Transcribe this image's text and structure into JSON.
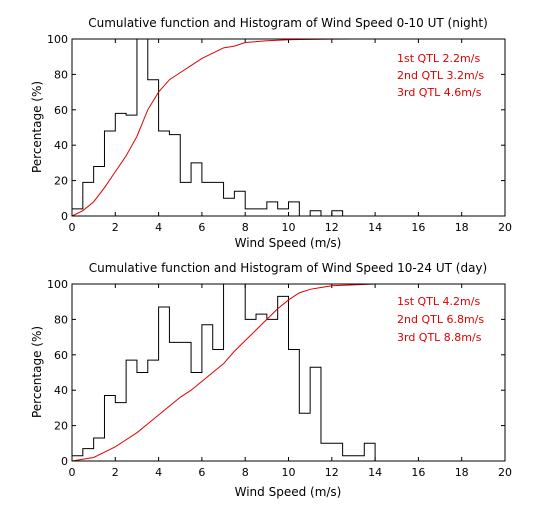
{
  "chart_data": [
    {
      "type": "line",
      "title": "Cumulative function and Histogram of Wind Speed 0-10 UT (night)",
      "xlabel": "Wind Speed (m/s)",
      "ylabel": "Percentage (%)",
      "xlim": [
        0,
        20
      ],
      "ylim": [
        0,
        100
      ],
      "xticks": [
        "0",
        "2",
        "4",
        "6",
        "8",
        "10",
        "12",
        "14",
        "16",
        "18",
        "20"
      ],
      "yticks": [
        "0",
        "20",
        "40",
        "60",
        "80",
        "100"
      ],
      "grid": false,
      "series": [
        {
          "kind": "histogram-step",
          "bin_width": 0.5,
          "bin_starts": [
            0,
            0.5,
            1,
            1.5,
            2,
            2.5,
            3,
            3.5,
            4,
            4.5,
            5,
            5.5,
            6,
            6.5,
            7,
            7.5,
            8,
            8.5,
            9,
            9.5,
            10,
            10.5,
            11,
            11.5,
            12,
            12.5,
            13
          ],
          "values": [
            4,
            19,
            28,
            48,
            58,
            57,
            100,
            77,
            48,
            46,
            19,
            30,
            19,
            19,
            10,
            14,
            4,
            4,
            8,
            4,
            8,
            0,
            3,
            0,
            3,
            0,
            0
          ]
        },
        {
          "kind": "cumulative",
          "x": [
            0,
            0.5,
            1,
            1.5,
            2,
            2.5,
            3,
            3.5,
            4,
            4.5,
            5,
            5.5,
            6,
            6.5,
            7,
            7.5,
            8,
            8.5,
            9,
            9.5,
            10,
            10.5,
            11,
            12,
            13,
            14,
            16,
            18,
            20
          ],
          "values": [
            0,
            3,
            8,
            16,
            25,
            34,
            45,
            60,
            70,
            77,
            81,
            85,
            89,
            92,
            95,
            96,
            98,
            98.5,
            99,
            99.3,
            99.6,
            99.7,
            99.8,
            99.9,
            100,
            100,
            100,
            100,
            100
          ]
        }
      ],
      "annotations": [
        "1st QTL 2.2m/s",
        "2nd QTL 3.2m/s",
        "3rd QTL 4.6m/s"
      ]
    },
    {
      "type": "line",
      "title": "Cumulative function and Histogram of Wind Speed 10-24 UT (day)",
      "xlabel": "Wind Speed (m/s)",
      "ylabel": "Percentage (%)",
      "xlim": [
        0,
        20
      ],
      "ylim": [
        0,
        100
      ],
      "xticks": [
        "0",
        "2",
        "4",
        "6",
        "8",
        "10",
        "12",
        "14",
        "16",
        "18",
        "20"
      ],
      "yticks": [
        "0",
        "20",
        "40",
        "60",
        "80",
        "100"
      ],
      "grid": false,
      "series": [
        {
          "kind": "histogram-step",
          "bin_width": 0.5,
          "bin_starts": [
            0,
            0.5,
            1,
            1.5,
            2,
            2.5,
            3,
            3.5,
            4,
            4.5,
            5,
            5.5,
            6,
            6.5,
            7,
            7.5,
            8,
            8.5,
            9,
            9.5,
            10,
            10.5,
            11,
            11.5,
            12,
            12.5,
            13,
            13.5
          ],
          "values": [
            3,
            7,
            13,
            37,
            33,
            57,
            50,
            57,
            87,
            67,
            67,
            50,
            77,
            63,
            100,
            100,
            80,
            83,
            80,
            93,
            63,
            27,
            53,
            10,
            10,
            3,
            3,
            10
          ]
        },
        {
          "kind": "cumulative",
          "x": [
            0,
            0.5,
            1,
            1.5,
            2,
            2.5,
            3,
            3.5,
            4,
            4.5,
            5,
            5.5,
            6,
            6.5,
            7,
            7.5,
            8,
            8.5,
            9,
            9.5,
            10,
            10.5,
            11,
            11.5,
            12,
            13,
            14,
            16,
            18,
            20
          ],
          "values": [
            0,
            1,
            2,
            5,
            8,
            12,
            16,
            21,
            26,
            31,
            36,
            40,
            45,
            50,
            55,
            62,
            68,
            74,
            80,
            86,
            91,
            95,
            97,
            98,
            99,
            99.5,
            100,
            100,
            100,
            100
          ]
        }
      ],
      "annotations": [
        "1st QTL 4.2m/s",
        "2nd QTL 6.8m/s",
        "3rd QTL 8.8m/s"
      ]
    }
  ]
}
